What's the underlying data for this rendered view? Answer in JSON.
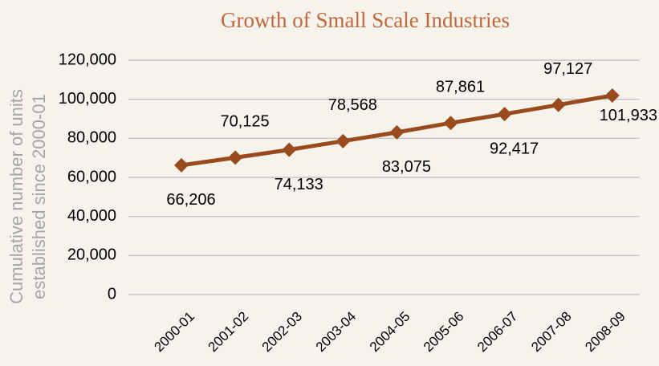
{
  "chart_data": {
    "type": "line",
    "title": "Growth of Small Scale Industries",
    "y_label": [
      "Cumulative number of units",
      "established since 2000-01"
    ],
    "categories": [
      "2000-01",
      "2001-02",
      "2002-03",
      "2003-04",
      "2004-05",
      "2005-06",
      "2006-07",
      "2007-08",
      "2008-09"
    ],
    "series": [
      {
        "name": "Cumulative number of units",
        "color": "#9a4b1e",
        "values": [
          66206,
          70125,
          74133,
          78568,
          83075,
          87861,
          92417,
          97127,
          101933
        ],
        "value_labels": [
          "66,206",
          "70,125",
          "74,133",
          "78,568",
          "83,075",
          "87,861",
          "92,417",
          "97,127",
          "101,933"
        ]
      }
    ],
    "ylim": [
      0,
      120000
    ],
    "yticks": [
      0,
      {
        "value": 20000,
        "label": "20,000"
      },
      {
        "value": 40000,
        "label": "40,000"
      },
      {
        "value": 60000,
        "label": "60,000"
      },
      {
        "value": 80000,
        "label": "80,000"
      },
      {
        "value": 100000,
        "label": "100,000"
      },
      {
        "value": 120000,
        "label": "120,000"
      }
    ],
    "grid": true
  }
}
